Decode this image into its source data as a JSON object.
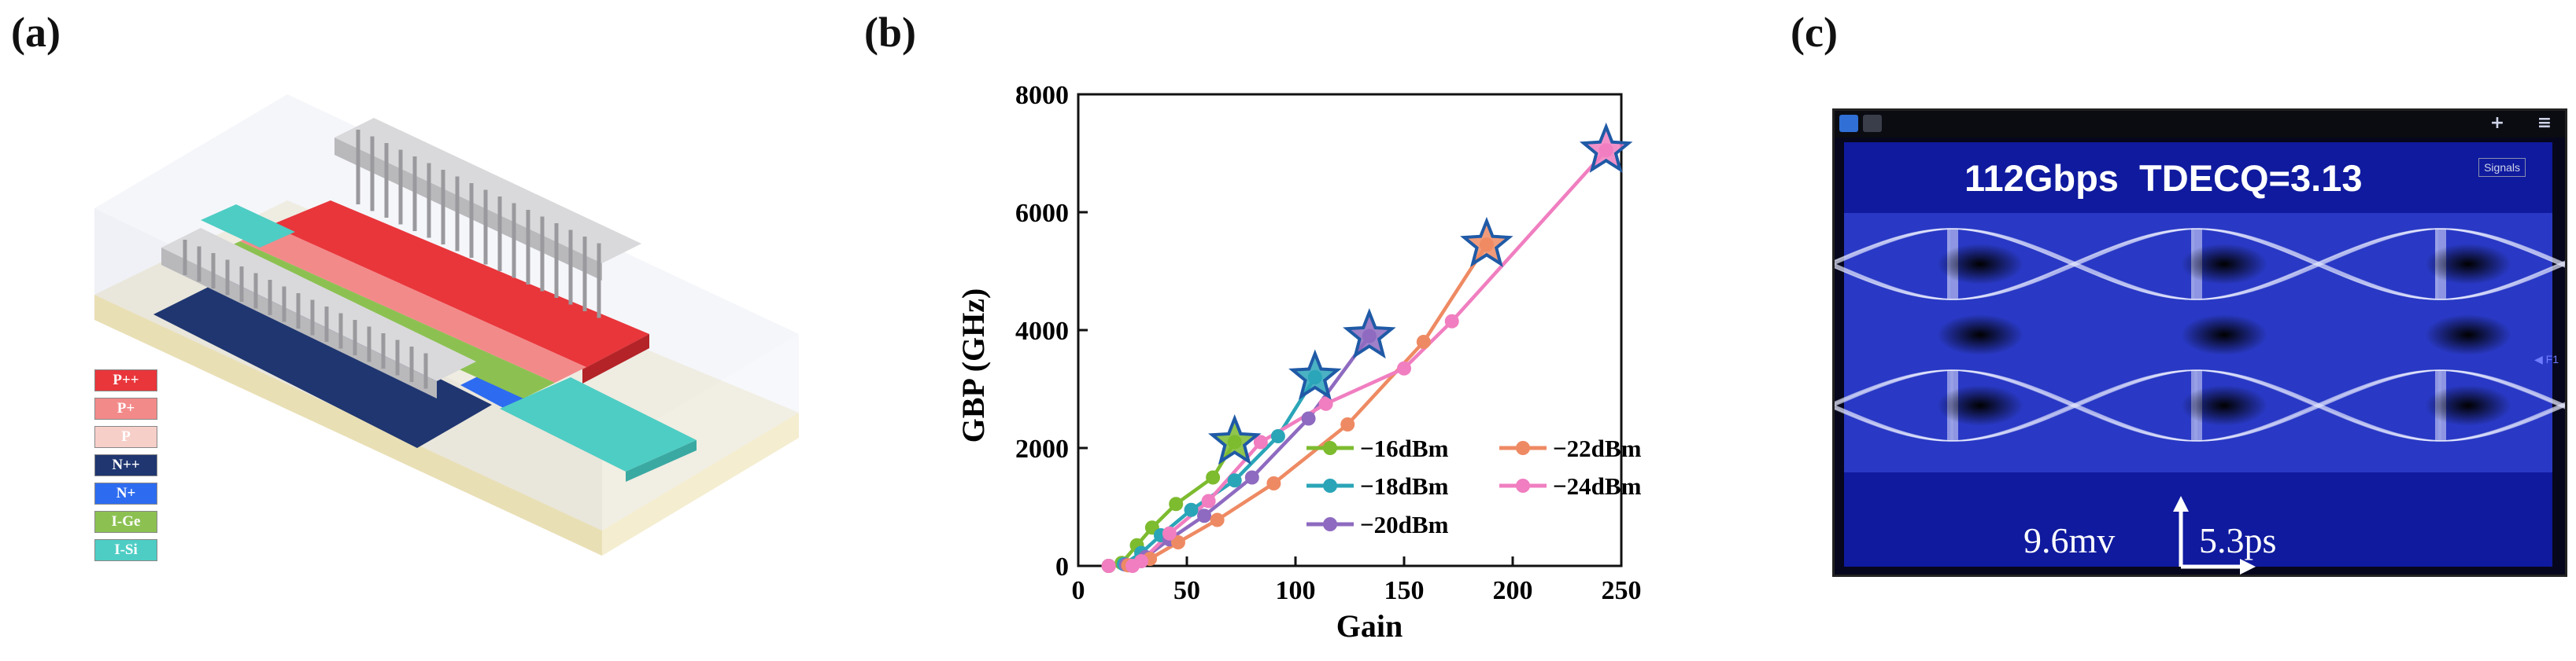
{
  "panels": {
    "a": {
      "label": "(a)"
    },
    "b": {
      "label": "(b)"
    },
    "c": {
      "label": "(c)"
    }
  },
  "device_legend": [
    {
      "label": "P++",
      "color": "#e8363b"
    },
    {
      "label": "P+",
      "color": "#f38a8a"
    },
    {
      "label": "P",
      "color": "#f7cfc9"
    },
    {
      "label": "N++",
      "color": "#1f3670"
    },
    {
      "label": "N+",
      "color": "#2d6cf0"
    },
    {
      "label": "I-Ge",
      "color": "#8cc152"
    },
    {
      "label": "I-Si",
      "color": "#4ecdc4"
    }
  ],
  "chart_data": {
    "type": "line",
    "xlabel": "Gain",
    "ylabel": "GBP (GHz)",
    "xlim": [
      0,
      250
    ],
    "ylim": [
      0,
      8000
    ],
    "xticks": [
      0,
      50,
      100,
      150,
      200,
      250
    ],
    "yticks": [
      0,
      2000,
      4000,
      6000,
      8000
    ],
    "legend_location": "bottom-right",
    "legend_columns": 2,
    "series": [
      {
        "name": "−16dBm",
        "color": "#7dbb2f",
        "x": [
          14,
          20,
          27,
          34,
          45,
          62,
          72
        ],
        "y": [
          0,
          50,
          350,
          650,
          1050,
          1500,
          2100
        ]
      },
      {
        "name": "−18dBm",
        "color": "#2aa5b8",
        "x": [
          14,
          21,
          29,
          38,
          52,
          72,
          92,
          109
        ],
        "y": [
          0,
          30,
          220,
          520,
          950,
          1450,
          2200,
          3200
        ]
      },
      {
        "name": "−20dBm",
        "color": "#8e6ac0",
        "x": [
          14,
          22,
          31,
          42,
          58,
          80,
          106,
          134
        ],
        "y": [
          0,
          20,
          150,
          450,
          850,
          1500,
          2500,
          3900
        ]
      },
      {
        "name": "−22dBm",
        "color": "#ee8a63",
        "x": [
          14,
          23,
          33,
          46,
          64,
          90,
          124,
          159,
          188
        ],
        "y": [
          0,
          10,
          120,
          400,
          780,
          1400,
          2400,
          3800,
          5450
        ]
      },
      {
        "name": "−24dBm",
        "color": "#f07ec0",
        "x": [
          14,
          25,
          29,
          42,
          60,
          84,
          114,
          150,
          172,
          243
        ],
        "y": [
          0,
          0,
          80,
          550,
          1100,
          2100,
          2750,
          3350,
          4150,
          7050
        ]
      }
    ],
    "peak_markers": [
      {
        "x": 72,
        "y": 2100,
        "fill": "#7dbb2f"
      },
      {
        "x": 109,
        "y": 3200,
        "fill": "#2aa5b8"
      },
      {
        "x": 134,
        "y": 3900,
        "fill": "#8e6ac0"
      },
      {
        "x": 188,
        "y": 5450,
        "fill": "#ee8a63"
      },
      {
        "x": 243,
        "y": 7050,
        "fill": "#f07ec0"
      }
    ]
  },
  "scope": {
    "title": "112Gbps  TDECQ=3.13",
    "signals_label": "Signals",
    "vertical_scale": "9.6mv",
    "horizontal_scale": "5.3ps",
    "marker_label": "◀ F1"
  }
}
